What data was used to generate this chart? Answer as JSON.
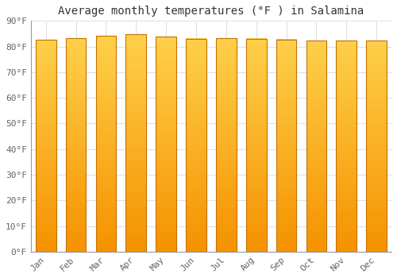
{
  "title": "Average monthly temperatures (°F ) in Salamina",
  "months": [
    "Jan",
    "Feb",
    "Mar",
    "Apr",
    "May",
    "Jun",
    "Jul",
    "Aug",
    "Sep",
    "Oct",
    "Nov",
    "Dec"
  ],
  "values": [
    82.6,
    83.3,
    84.2,
    84.7,
    83.8,
    83.1,
    83.3,
    83.1,
    82.8,
    82.4,
    82.2,
    82.4
  ],
  "bar_color_top": "#FFD04A",
  "bar_color_bottom": "#F59200",
  "bar_edge_color": "#C87000",
  "background_color": "#ffffff",
  "plot_bg_color": "#ffffff",
  "ylim": [
    0,
    90
  ],
  "yticks": [
    0,
    10,
    20,
    30,
    40,
    50,
    60,
    70,
    80,
    90
  ],
  "ytick_labels": [
    "0°F",
    "10°F",
    "20°F",
    "30°F",
    "40°F",
    "50°F",
    "60°F",
    "70°F",
    "80°F",
    "90°F"
  ],
  "title_fontsize": 10,
  "tick_fontsize": 8,
  "grid_color": "#e0e0e0",
  "font_family": "monospace"
}
